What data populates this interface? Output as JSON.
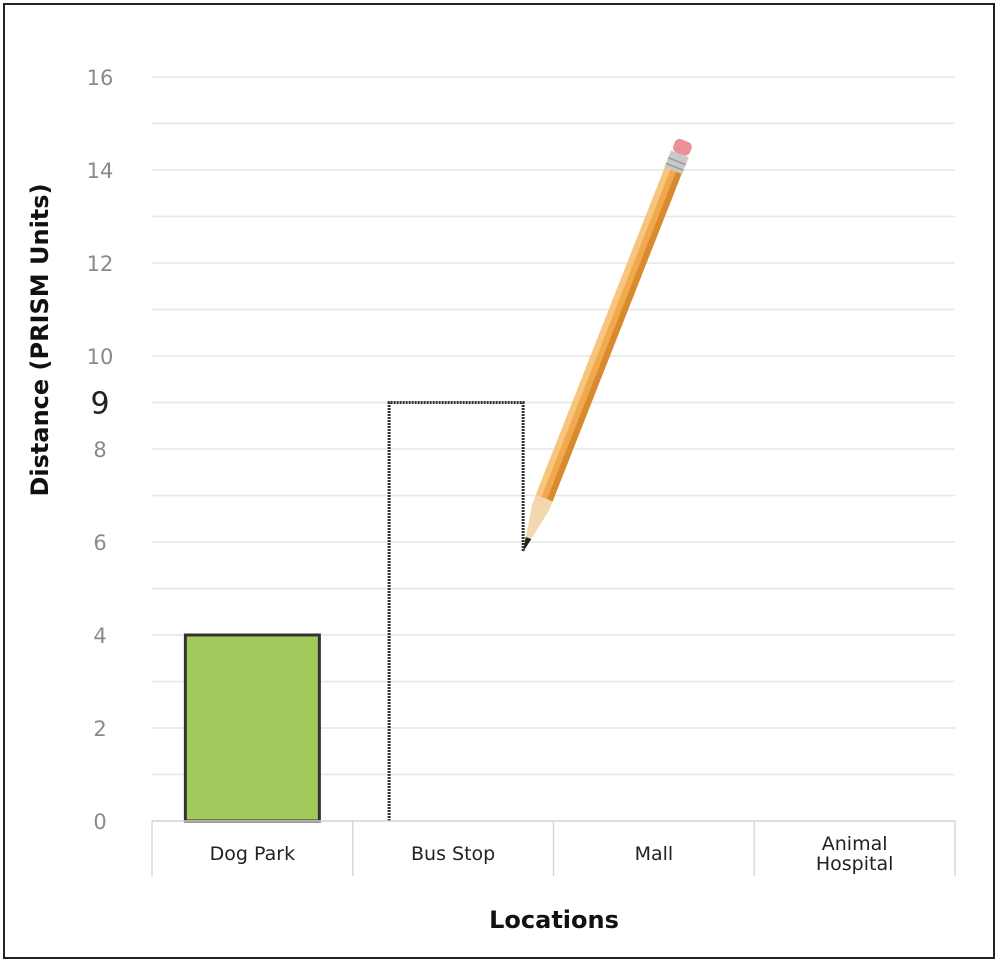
{
  "chart_data": {
    "type": "bar",
    "categories": [
      "Dog Park",
      "Bus Stop",
      "Mall",
      "Animal Hospital"
    ],
    "category_lines": [
      [
        "Dog Park"
      ],
      [
        "Bus Stop"
      ],
      [
        "Mall"
      ],
      [
        "Animal",
        "Hospital"
      ]
    ],
    "values": [
      4,
      9,
      null,
      null
    ],
    "bar_styles": [
      "filled",
      "outline",
      "none",
      "none"
    ],
    "xlabel": "Locations",
    "ylabel": "Distance (PRISM Units)",
    "ylim": [
      0,
      16
    ],
    "major_ticks": [
      0,
      2,
      4,
      6,
      8,
      10,
      12,
      14,
      16
    ],
    "minor_step": 1,
    "highlighted_tick": {
      "value": 9,
      "label": "9"
    },
    "grid": true,
    "colors": {
      "bar_fill": "#a2c95c",
      "bar_stroke": "#333333",
      "grid": "#e6e6e6",
      "tick": "#8a8a8a"
    }
  },
  "annotations": {
    "pencil": "pencil-icon"
  }
}
